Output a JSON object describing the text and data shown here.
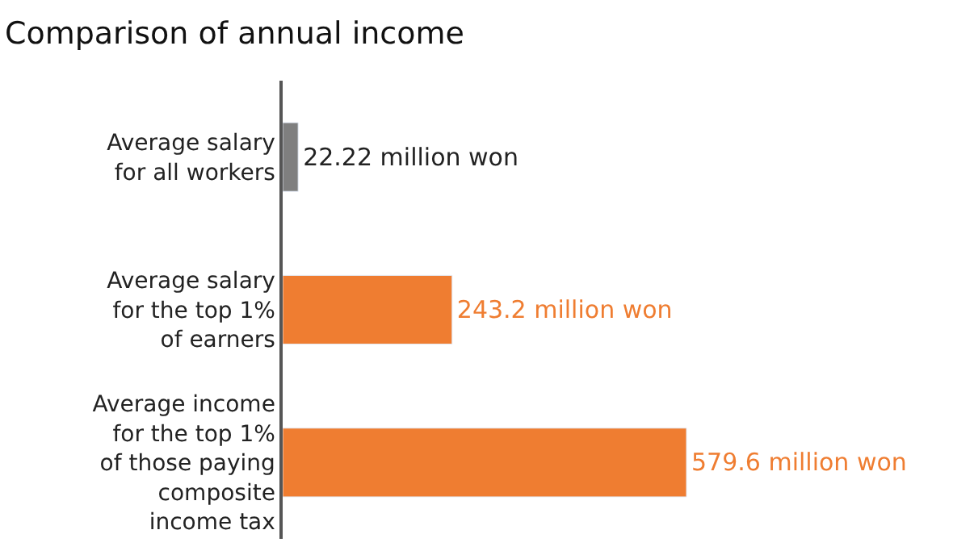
{
  "chart_data": {
    "type": "bar",
    "orientation": "horizontal",
    "title": "Comparison of annual income",
    "categories": [
      "Average salary\nfor all workers",
      "Average salary\nfor the top 1%\nof earners",
      "Average income\nfor the top 1%\nof those paying\ncomposite\nincome tax"
    ],
    "values": [
      22.22,
      243.2,
      579.6
    ],
    "colors": [
      "#7f7f7f",
      "#ef7d31",
      "#ef7d31"
    ],
    "value_labels": [
      "22.22 million won",
      "243.2 million won",
      "579.6 million won"
    ]
  }
}
